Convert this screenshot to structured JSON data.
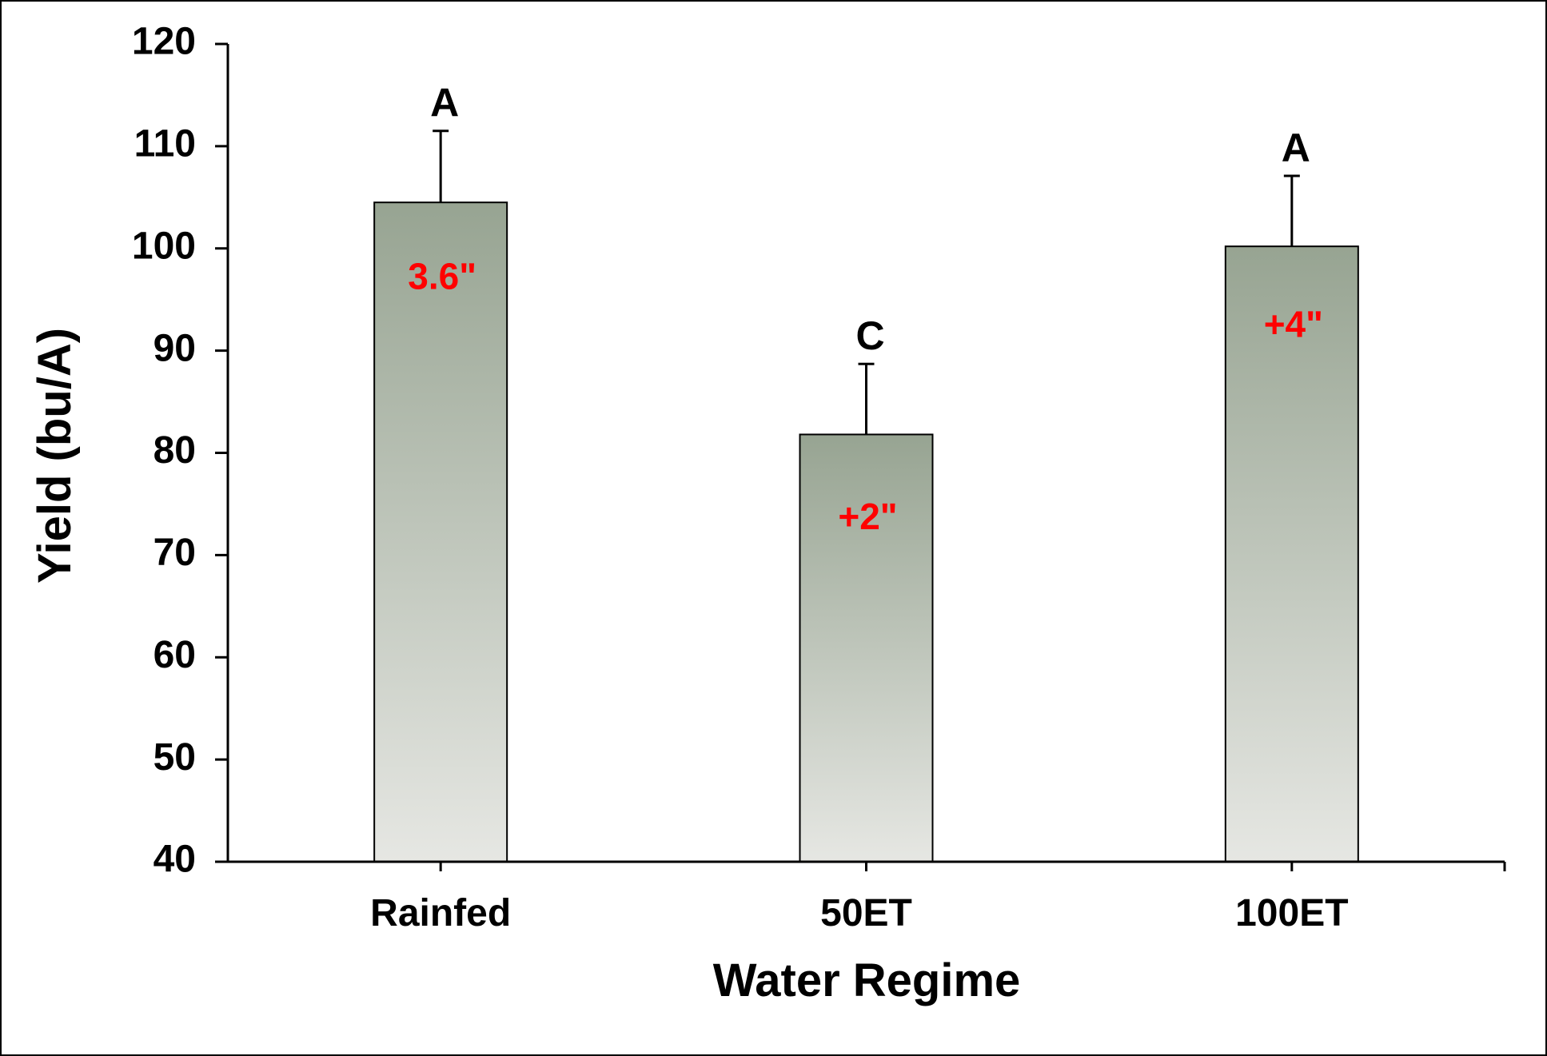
{
  "chart_data": {
    "type": "bar",
    "title": "",
    "xlabel": "Water Regime",
    "ylabel": "Yield (bu/A)",
    "ylim": [
      40,
      120
    ],
    "yticks": [
      40,
      50,
      60,
      70,
      80,
      90,
      100,
      110,
      120
    ],
    "grid": false,
    "categories": [
      "Rainfed",
      "50ET",
      "100ET"
    ],
    "values": [
      104.5,
      81.8,
      100.2
    ],
    "error_upper": [
      111.5,
      88.7,
      107.1
    ],
    "significance_letters": [
      "A",
      "C",
      "A"
    ],
    "bar_labels": [
      "3.6\"",
      "+2\"",
      "+4\""
    ],
    "bar_label_values": [
      97,
      73.5,
      92.3
    ],
    "colors": {
      "bar_top": "#97a492",
      "bar_bottom": "#e6e7e3",
      "bar_label": "#ff0000",
      "axis": "#000000"
    }
  }
}
